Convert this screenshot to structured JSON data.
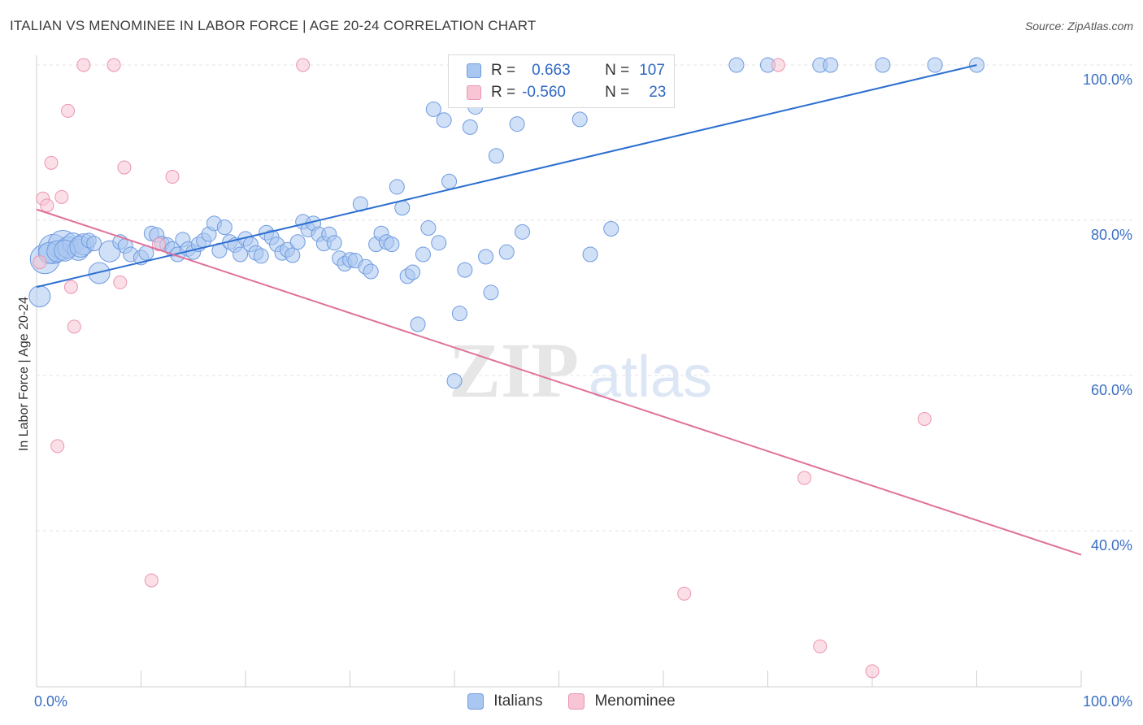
{
  "header": {
    "title": "ITALIAN VS MENOMINEE IN LABOR FORCE | AGE 20-24 CORRELATION CHART",
    "source": "Source: ZipAtlas.com"
  },
  "watermark": {
    "zip": "ZIP",
    "atlas": "atlas"
  },
  "legend": {
    "rows": [
      {
        "r_label": "R =",
        "r_value": "0.663",
        "n_label": "N =",
        "n_value": "107"
      },
      {
        "r_label": "R =",
        "r_value": "-0.560",
        "n_label": "N =",
        "n_value": "23"
      }
    ]
  },
  "bottom_legend": {
    "italians": "Italians",
    "menominee": "Menominee"
  },
  "chart_data": {
    "type": "scatter",
    "xlabel": "",
    "ylabel": "In Labor Force | Age 20-24",
    "x_tick_labels": [
      "0.0%",
      "100.0%"
    ],
    "y_tick_labels": [
      "100.0%",
      "80.0%",
      "60.0%",
      "40.0%"
    ],
    "xlim": [
      0,
      100
    ],
    "ylim": [
      19,
      103
    ],
    "grid": true,
    "colors": {
      "italians_fill": "#a9c7f0",
      "italians_stroke": "#6f9be0",
      "italians_line": "#2d6fd0",
      "menominee_fill": "#f7c5d4",
      "menominee_stroke": "#ec94b1",
      "menominee_line": "#e07099",
      "grid": "#e3e3e3",
      "tick_text": "#3b6fc4"
    },
    "series": [
      {
        "name": "Italians",
        "trend": {
          "x": [
            0,
            90
          ],
          "y": [
            71.4,
            100.0
          ]
        },
        "points": [
          [
            0.3,
            70.2,
            2
          ],
          [
            0.8,
            75.0,
            3
          ],
          [
            1.2,
            75.8,
            2
          ],
          [
            1.6,
            76.3,
            3
          ],
          [
            2.0,
            76.0,
            2
          ],
          [
            2.5,
            76.8,
            3
          ],
          [
            3.0,
            76.5,
            2
          ],
          [
            3.5,
            77.0,
            2
          ],
          [
            4.0,
            76.2,
            2
          ],
          [
            4.5,
            76.9,
            2
          ],
          [
            5.0,
            77.4,
            1
          ],
          [
            5.5,
            77.0,
            1
          ],
          [
            6.0,
            73.2,
            2
          ],
          [
            7.0,
            76.0,
            2
          ],
          [
            8.0,
            77.2,
            1
          ],
          [
            8.5,
            76.7,
            1
          ],
          [
            9.0,
            75.6,
            1
          ],
          [
            10.0,
            75.2,
            1
          ],
          [
            10.5,
            75.8,
            1
          ],
          [
            11.0,
            78.3,
            1
          ],
          [
            11.5,
            78.1,
            1
          ],
          [
            12.0,
            77.0,
            1
          ],
          [
            12.5,
            76.8,
            1
          ],
          [
            13.0,
            76.3,
            1
          ],
          [
            13.5,
            75.6,
            1
          ],
          [
            14.0,
            77.5,
            1
          ],
          [
            14.5,
            76.3,
            1
          ],
          [
            15.0,
            75.9,
            1
          ],
          [
            15.5,
            76.9,
            1
          ],
          [
            16.0,
            77.4,
            1
          ],
          [
            16.5,
            78.2,
            1
          ],
          [
            17.0,
            79.6,
            1
          ],
          [
            17.5,
            76.1,
            1
          ],
          [
            18.0,
            79.1,
            1
          ],
          [
            18.5,
            77.2,
            1
          ],
          [
            19.0,
            76.8,
            1
          ],
          [
            19.5,
            75.6,
            1
          ],
          [
            20.0,
            77.6,
            1
          ],
          [
            20.5,
            76.9,
            1
          ],
          [
            21.0,
            75.8,
            1
          ],
          [
            21.5,
            75.4,
            1
          ],
          [
            22.0,
            78.4,
            1
          ],
          [
            22.5,
            77.8,
            1
          ],
          [
            23.0,
            76.9,
            1
          ],
          [
            23.5,
            75.8,
            1
          ],
          [
            24.0,
            76.2,
            1
          ],
          [
            24.5,
            75.5,
            1
          ],
          [
            25.0,
            77.2,
            1
          ],
          [
            25.5,
            79.8,
            1
          ],
          [
            26.0,
            78.8,
            1
          ],
          [
            26.5,
            79.6,
            1
          ],
          [
            27.0,
            78.2,
            1
          ],
          [
            27.5,
            77.0,
            1
          ],
          [
            28.0,
            78.2,
            1
          ],
          [
            28.5,
            77.1,
            1
          ],
          [
            29.0,
            75.1,
            1
          ],
          [
            29.5,
            74.4,
            1
          ],
          [
            30.0,
            74.9,
            1
          ],
          [
            30.5,
            74.8,
            1
          ],
          [
            31.0,
            82.1,
            1
          ],
          [
            31.5,
            74.0,
            1
          ],
          [
            32.0,
            73.4,
            1
          ],
          [
            32.5,
            76.9,
            1
          ],
          [
            33.0,
            78.3,
            1
          ],
          [
            33.5,
            77.2,
            1
          ],
          [
            34.0,
            76.9,
            1
          ],
          [
            34.5,
            84.3,
            1
          ],
          [
            35.0,
            81.6,
            1
          ],
          [
            35.5,
            72.8,
            1
          ],
          [
            36.0,
            73.3,
            1
          ],
          [
            36.5,
            66.6,
            1
          ],
          [
            37.0,
            75.6,
            1
          ],
          [
            37.5,
            79.0,
            1
          ],
          [
            38.0,
            94.3,
            1
          ],
          [
            38.5,
            77.1,
            1
          ],
          [
            39.0,
            92.9,
            1
          ],
          [
            39.5,
            85.0,
            1
          ],
          [
            40.0,
            59.3,
            1
          ],
          [
            40.5,
            68.0,
            1
          ],
          [
            41.0,
            73.6,
            1
          ],
          [
            41.5,
            92.0,
            1
          ],
          [
            42.0,
            94.6,
            1
          ],
          [
            42.5,
            100.0,
            1
          ],
          [
            43.0,
            75.3,
            1
          ],
          [
            43.5,
            70.7,
            1
          ],
          [
            44.0,
            88.3,
            1
          ],
          [
            44.5,
            100.0,
            1
          ],
          [
            45.0,
            75.9,
            1
          ],
          [
            45.5,
            100.0,
            1
          ],
          [
            46.0,
            92.4,
            1
          ],
          [
            46.5,
            78.5,
            1
          ],
          [
            48.0,
            100.0,
            1
          ],
          [
            49.0,
            100.0,
            1
          ],
          [
            50.0,
            100.0,
            1
          ],
          [
            51.0,
            100.0,
            1
          ],
          [
            52.0,
            93.0,
            1
          ],
          [
            53.0,
            75.6,
            1
          ],
          [
            55.0,
            78.9,
            1
          ],
          [
            67.0,
            100.0,
            1
          ],
          [
            70.0,
            100.0,
            1
          ],
          [
            75.0,
            100.0,
            1
          ],
          [
            76.0,
            100.0,
            1
          ],
          [
            81.0,
            100.0,
            1
          ],
          [
            86.0,
            100.0,
            1
          ],
          [
            90.0,
            100.0,
            1
          ],
          [
            2.7,
            76.1,
            2
          ],
          [
            4.2,
            76.6,
            2
          ]
        ]
      },
      {
        "name": "Menominee",
        "trend": {
          "x": [
            0,
            100
          ],
          "y": [
            81.4,
            36.9
          ]
        },
        "points": [
          [
            0.3,
            74.6
          ],
          [
            0.6,
            82.8
          ],
          [
            1.0,
            81.9
          ],
          [
            1.4,
            87.4
          ],
          [
            2.0,
            50.9
          ],
          [
            2.4,
            83.0
          ],
          [
            3.0,
            94.1
          ],
          [
            3.3,
            71.4
          ],
          [
            3.6,
            66.3
          ],
          [
            4.5,
            100.0
          ],
          [
            7.4,
            100.0
          ],
          [
            8.0,
            72.0
          ],
          [
            8.4,
            86.8
          ],
          [
            11.0,
            33.6
          ],
          [
            11.7,
            76.9
          ],
          [
            13.0,
            85.6
          ],
          [
            25.5,
            100.0
          ],
          [
            62.0,
            31.9
          ],
          [
            71.0,
            100.0
          ],
          [
            73.5,
            46.8
          ],
          [
            75.0,
            25.1
          ],
          [
            80.0,
            21.9
          ],
          [
            85.0,
            54.4
          ]
        ]
      }
    ]
  }
}
